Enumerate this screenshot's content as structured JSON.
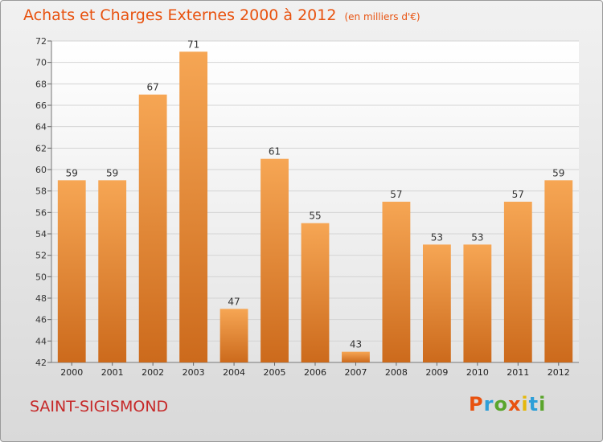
{
  "chart_title": "Achats et Charges Externes 2000 à 2012",
  "chart_unit": "(en milliers d'€)",
  "place_name": "SAINT-SIGISMOND",
  "brand": "Proxiti",
  "colors": {
    "title": "#e8520f",
    "bar_top": "#f6a654",
    "bar_bottom": "#cc6a1c",
    "place": "#c62828",
    "brand_letters": [
      "#e8520f",
      "#2e9fd8",
      "#5aa52c",
      "#e8520f",
      "#e5b80b",
      "#2e9fd8",
      "#5aa52c"
    ]
  },
  "chart_data": {
    "type": "bar",
    "title": "Achats et Charges Externes 2000 à 2012",
    "subtitle": "(en milliers d'€)",
    "categories": [
      "2000",
      "2001",
      "2002",
      "2003",
      "2004",
      "2005",
      "2006",
      "2007",
      "2008",
      "2009",
      "2010",
      "2011",
      "2012"
    ],
    "values": [
      59,
      59,
      67,
      71,
      47,
      61,
      55,
      43,
      57,
      53,
      53,
      57,
      59
    ],
    "ylim": [
      42,
      72
    ],
    "yticks": [
      42,
      44,
      46,
      48,
      50,
      52,
      54,
      56,
      58,
      60,
      62,
      64,
      66,
      68,
      70,
      72
    ],
    "grid": true,
    "data_labels": true
  }
}
